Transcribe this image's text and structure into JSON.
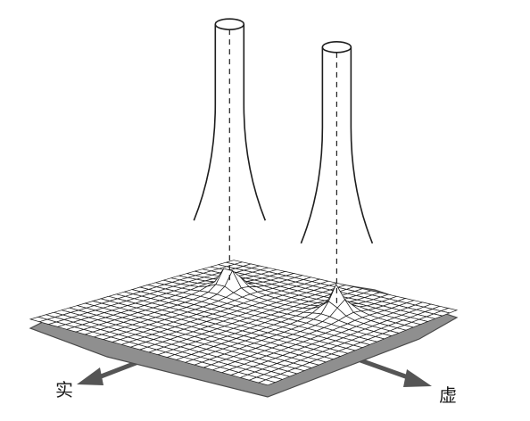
{
  "figure": {
    "axis_real_label": "实",
    "axis_imag_label": "虚",
    "colors": {
      "ink": "#1e1e1e",
      "base_plane": "#8f8f8f",
      "base_plane_edge": "#4a4a4a",
      "arrow": "#555555",
      "surface_fill": "#ffffff"
    }
  }
}
